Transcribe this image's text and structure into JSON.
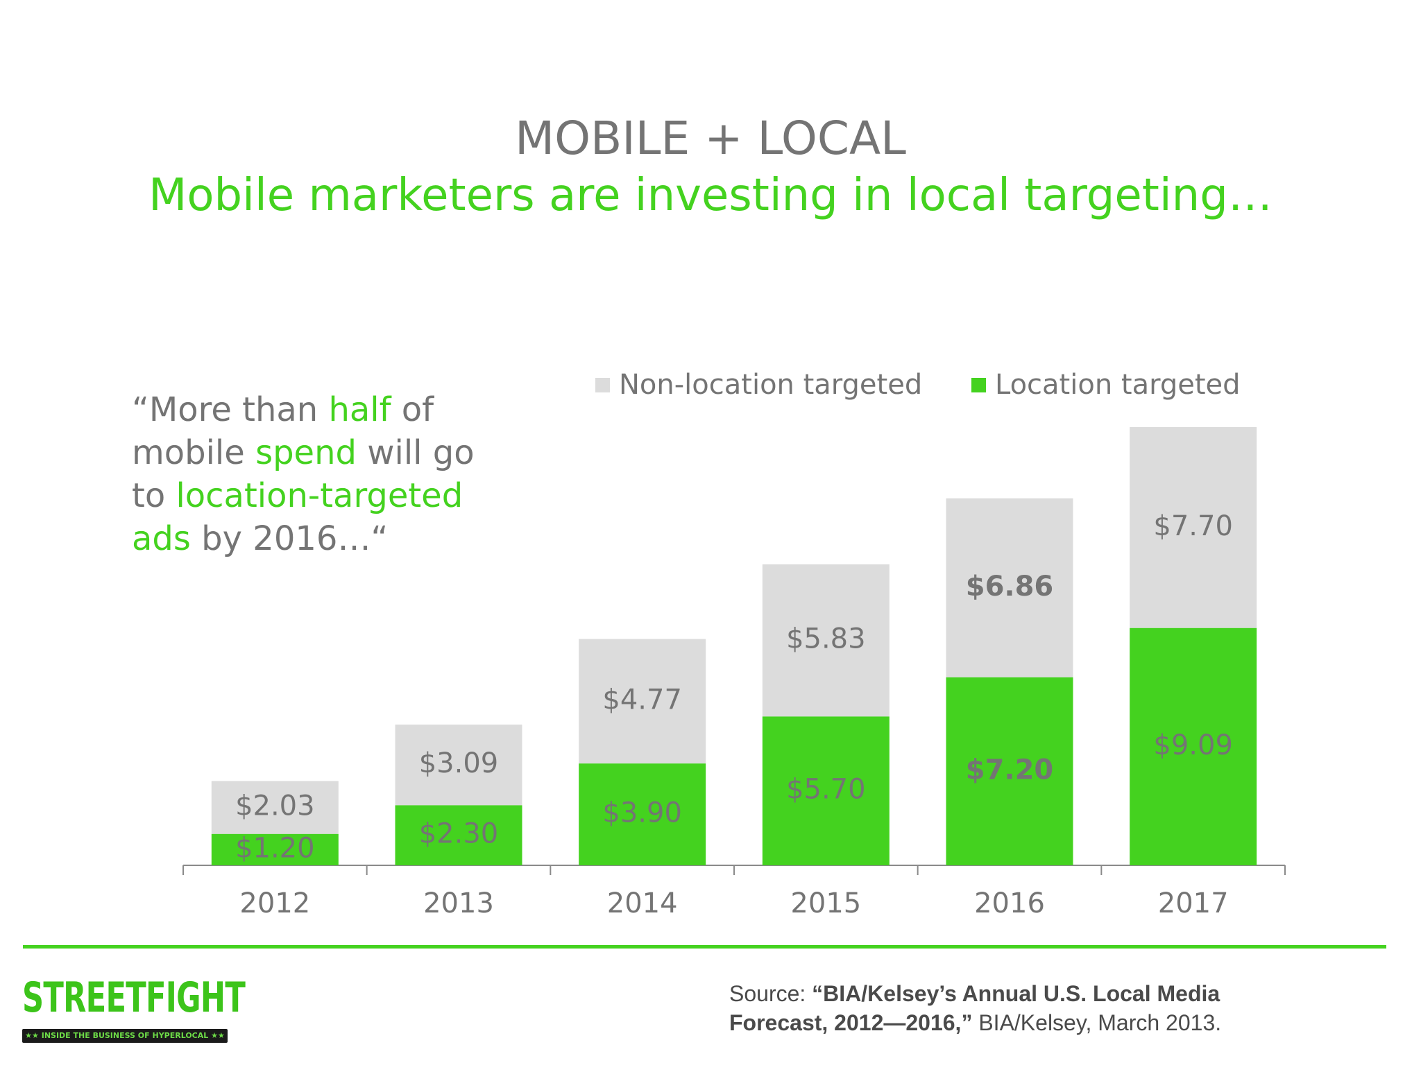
{
  "header": {
    "title": "MOBILE + LOCAL",
    "subtitle": "Mobile marketers are investing in local targeting…"
  },
  "quote": {
    "parts": [
      {
        "text": "“More than ",
        "highlight": false
      },
      {
        "text": "half",
        "highlight": true
      },
      {
        "text": " of mobile ",
        "highlight": false
      },
      {
        "text": "spend",
        "highlight": true
      },
      {
        "text": " will go to ",
        "highlight": false
      },
      {
        "text": "location-targeted ads",
        "highlight": true
      },
      {
        "text": " by 2016…“",
        "highlight": false
      }
    ]
  },
  "chart_data": {
    "type": "bar",
    "stacked": true,
    "categories": [
      "2012",
      "2013",
      "2014",
      "2015",
      "2016",
      "2017"
    ],
    "series": [
      {
        "name": "Location targeted",
        "color": "#44d21f",
        "values": [
          1.2,
          2.3,
          3.9,
          5.7,
          7.2,
          9.09
        ],
        "labels": [
          "$1.20",
          "$2.30",
          "$3.90",
          "$5.70",
          "$7.20",
          "$9.09"
        ],
        "bold": [
          false,
          false,
          false,
          false,
          true,
          false
        ]
      },
      {
        "name": "Non-location targeted",
        "color": "#dcdcdc",
        "values": [
          2.03,
          3.09,
          4.77,
          5.83,
          6.86,
          7.7
        ],
        "labels": [
          "$2.03",
          "$3.09",
          "$4.77",
          "$5.83",
          "$6.86",
          "$7.70"
        ],
        "bold": [
          false,
          false,
          false,
          false,
          true,
          false
        ]
      }
    ],
    "legend_order": [
      "Non-location targeted",
      "Location targeted"
    ],
    "legend_position": "top",
    "ylim": [
      0,
      17
    ],
    "grid": false,
    "label_color": "#747474"
  },
  "footer": {
    "logo": {
      "word": "STREETFIGHT",
      "tagline": "★★ INSIDE THE BUSINESS OF HYPERLOCAL ★★"
    },
    "source": {
      "label": "Source: ",
      "bold": "“BIA/Kelsey’s Annual U.S. Local Media Forecast, 2012—2016,”",
      "rest": " BIA/Kelsey, March 2013."
    }
  }
}
